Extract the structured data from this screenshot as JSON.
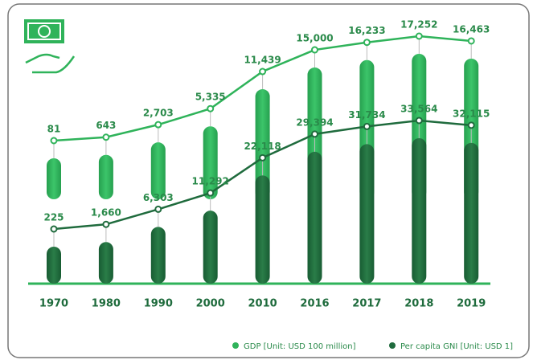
{
  "chart_data": {
    "type": "line",
    "categories": [
      "1970",
      "1980",
      "1990",
      "2000",
      "2010",
      "2016",
      "2017",
      "2018",
      "2019"
    ],
    "series": [
      {
        "name": "GDP [Unit: USD 100 million]",
        "color": "#2fb35a",
        "values": [
          81,
          643,
          2703,
          5335,
          11439,
          15000,
          16233,
          17252,
          16463
        ],
        "value_labels": [
          "81",
          "643",
          "2,703",
          "5,335",
          "11,439",
          "15,000",
          "16,233",
          "17,252",
          "16,463"
        ]
      },
      {
        "name": "Per capita GNI [Unit: USD 1]",
        "color": "#1f6b3d",
        "values": [
          225,
          1660,
          6303,
          11292,
          22118,
          29394,
          31734,
          33564,
          32115
        ],
        "value_labels": [
          "225",
          "1,660",
          "6,303",
          "11,292",
          "22,118",
          "29,394",
          "31,734",
          "33,564",
          "32,115"
        ]
      }
    ]
  }
}
